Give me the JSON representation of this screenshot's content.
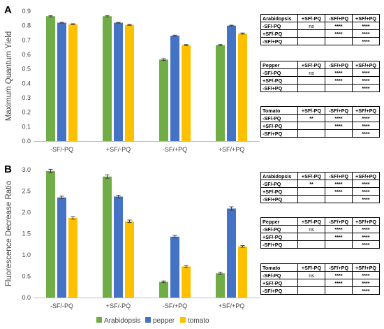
{
  "legend": {
    "items": [
      {
        "name": "Arabidopsis",
        "color": "#70ad47"
      },
      {
        "name": "pepper",
        "color": "#4472c4"
      },
      {
        "name": "tomato",
        "color": "#ffc000"
      }
    ]
  },
  "chart_data": [
    {
      "type": "bar",
      "panel_label": "A",
      "ylabel": "Maximum Quantum Yield",
      "xlabel": "",
      "categories": [
        "-SF/-PQ",
        "+SF/-PQ",
        "-SF/+PQ",
        "+SF/+PQ"
      ],
      "ylim": [
        0,
        0.9
      ],
      "yticks": [
        "0.0",
        "0.1",
        "0.2",
        "0.3",
        "0.4",
        "0.5",
        "0.6",
        "0.7",
        "0.8",
        "0.9"
      ],
      "grid": false,
      "series": [
        {
          "name": "Arabidopsis",
          "color": "#70ad47",
          "values": [
            0.865,
            0.865,
            0.565,
            0.665
          ],
          "errors": [
            0.004,
            0.004,
            0.006,
            0.004
          ]
        },
        {
          "name": "pepper",
          "color": "#4472c4",
          "values": [
            0.82,
            0.82,
            0.73,
            0.8
          ],
          "errors": [
            0.003,
            0.003,
            0.004,
            0.003
          ]
        },
        {
          "name": "tomato",
          "color": "#ffc000",
          "values": [
            0.81,
            0.805,
            0.665,
            0.745
          ],
          "errors": [
            0.003,
            0.003,
            0.004,
            0.004
          ]
        }
      ]
    },
    {
      "type": "bar",
      "panel_label": "B",
      "ylabel": "Fluorescence Decrease Ratio",
      "xlabel": "",
      "categories": [
        "-SF/-PQ",
        "+SF/-PQ",
        "-SF/+PQ",
        "+SF/+PQ"
      ],
      "ylim": [
        0,
        3.0
      ],
      "yticks": [
        "0.0",
        "0.5",
        "1.0",
        "1.5",
        "2.0",
        "2.5",
        "3.0"
      ],
      "grid": false,
      "series": [
        {
          "name": "Arabidopsis",
          "color": "#70ad47",
          "values": [
            2.97,
            2.84,
            0.37,
            0.57
          ],
          "errors": [
            0.04,
            0.04,
            0.02,
            0.02
          ]
        },
        {
          "name": "pepper",
          "color": "#4472c4",
          "values": [
            2.35,
            2.37,
            1.43,
            2.09
          ],
          "errors": [
            0.03,
            0.03,
            0.03,
            0.04
          ]
        },
        {
          "name": "tomato",
          "color": "#ffc000",
          "values": [
            1.87,
            1.79,
            0.73,
            1.2
          ],
          "errors": [
            0.03,
            0.03,
            0.02,
            0.02
          ]
        }
      ]
    }
  ],
  "tables": [
    {
      "top": 20,
      "title": "Arabidopsis",
      "columns": [
        "+SF/-PQ",
        "-SF/+PQ",
        "+SF/+PQ"
      ],
      "rows": [
        {
          "label": "-SF/-PQ",
          "cells": [
            "ns",
            "****",
            "****"
          ]
        },
        {
          "label": "+SF/-PQ",
          "cells": [
            "",
            "****",
            "****"
          ]
        },
        {
          "label": "-SF/+PQ",
          "cells": [
            "",
            "",
            "****"
          ]
        }
      ]
    },
    {
      "top": 87,
      "title": "Pepper",
      "columns": [
        "+SF/-PQ",
        "-SF/+PQ",
        "+SF/+PQ"
      ],
      "rows": [
        {
          "label": "-SF/-PQ",
          "cells": [
            "ns",
            "****",
            "****"
          ]
        },
        {
          "label": "+SF/-PQ",
          "cells": [
            "",
            "****",
            "****"
          ]
        },
        {
          "label": "-SF/+PQ",
          "cells": [
            "",
            "",
            "****"
          ]
        }
      ]
    },
    {
      "top": 152,
      "title": "Tomato",
      "columns": [
        "+SF/-PQ",
        "-SF/+PQ",
        "+SF/+PQ"
      ],
      "rows": [
        {
          "label": "-SF/-PQ",
          "cells": [
            "**",
            "****",
            "****"
          ]
        },
        {
          "label": "+SF/-PQ",
          "cells": [
            "",
            "****",
            "****"
          ]
        },
        {
          "label": "-SF/+PQ",
          "cells": [
            "",
            "",
            "****"
          ]
        }
      ]
    },
    {
      "top": 246,
      "title": "Arabidopsis",
      "columns": [
        "+SF/-PQ",
        "-SF/+PQ",
        "+SF/+PQ"
      ],
      "rows": [
        {
          "label": "-SF/-PQ",
          "cells": [
            "**",
            "****",
            "****"
          ]
        },
        {
          "label": "+SF/-PQ",
          "cells": [
            "",
            "****",
            "****"
          ]
        },
        {
          "label": "-SF/+PQ",
          "cells": [
            "",
            "",
            "****"
          ]
        }
      ]
    },
    {
      "top": 311,
      "title": "Pepper",
      "columns": [
        "+SF/-PQ",
        "-SF/+PQ",
        "+SF/+PQ"
      ],
      "rows": [
        {
          "label": "-SF/-PQ",
          "cells": [
            "ns",
            "****",
            "****"
          ]
        },
        {
          "label": "+SF/-PQ",
          "cells": [
            "",
            "****",
            "****"
          ]
        },
        {
          "label": "-SF/+PQ",
          "cells": [
            "",
            "",
            "****"
          ]
        }
      ]
    },
    {
      "top": 377,
      "title": "Tomato",
      "columns": [
        "+SF/-PQ",
        "-SF/+PQ",
        "+SF/+PQ"
      ],
      "rows": [
        {
          "label": "-SF/-PQ",
          "cells": [
            "ns",
            "****",
            "****"
          ]
        },
        {
          "label": "+SF/-PQ",
          "cells": [
            "",
            "****",
            "****"
          ]
        },
        {
          "label": "-SF/+PQ",
          "cells": [
            "",
            "",
            "****"
          ]
        }
      ]
    }
  ]
}
